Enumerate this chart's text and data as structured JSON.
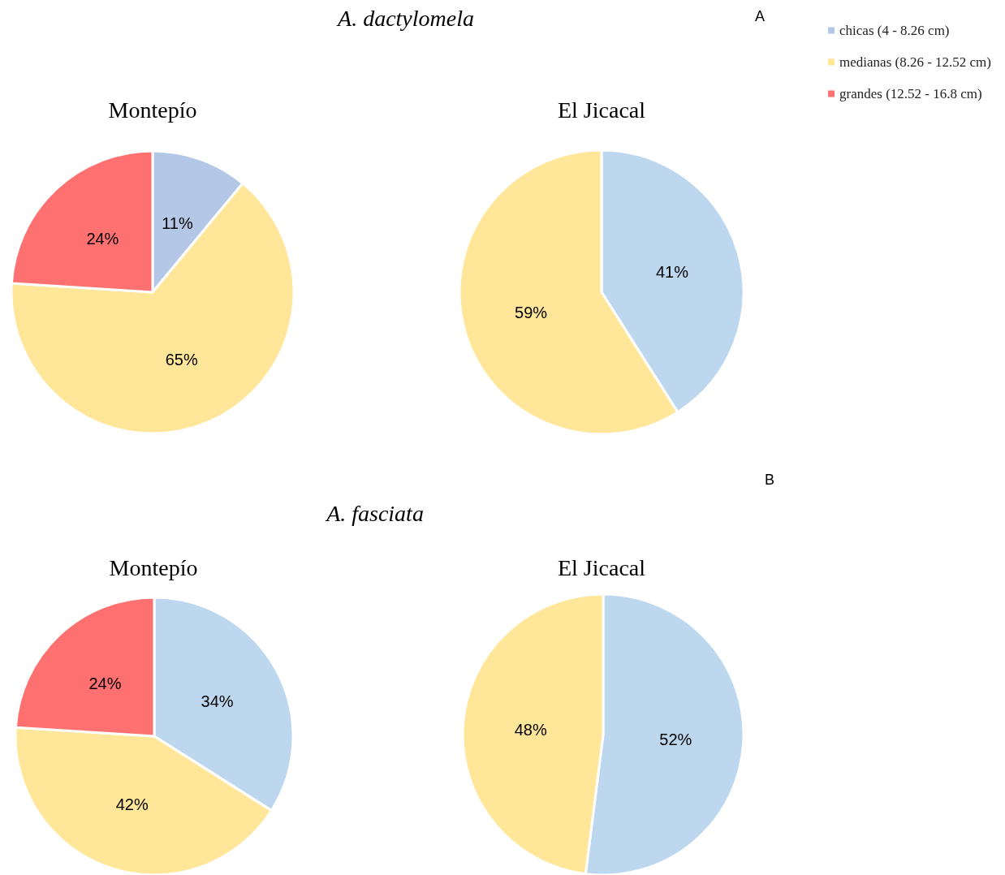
{
  "chart_data": [
    {
      "type": "pie",
      "title": "Montepío",
      "annotations": [
        "A. dactylomela",
        "A"
      ],
      "categories": [
        "chicas (4 - 8.26 cm)",
        "medianas (8.26 - 12.52 cm)",
        "grandes (12.52 - 16.8 cm)"
      ],
      "values": [
        11,
        65,
        24
      ],
      "value_labels": [
        "11%",
        "65%",
        "24%"
      ],
      "colors": [
        "#b4c7e7",
        "#ffe699",
        "#ff7171"
      ],
      "legend": "top right"
    },
    {
      "type": "pie",
      "title": "El Jicacal",
      "categories": [
        null,
        null
      ],
      "values": [
        41,
        59
      ],
      "value_labels": [
        "41%",
        "59%"
      ],
      "colors": [
        "#bdd7ee",
        "#ffe699"
      ]
    },
    {
      "type": "pie",
      "title": "Montepío",
      "annotations": [
        "A. fasciata",
        "B"
      ],
      "categories": [
        null,
        null,
        null
      ],
      "values": [
        34,
        42,
        24
      ],
      "value_labels": [
        "34%",
        "42%",
        "24%"
      ],
      "colors": [
        "#bdd7ee",
        "#ffe699",
        "#ff7171"
      ]
    },
    {
      "type": "pie",
      "title": "El Jicacal",
      "categories": [
        null,
        null
      ],
      "values": [
        52,
        48
      ],
      "value_labels": [
        "52%",
        "48%"
      ],
      "colors": [
        "#bdd7ee",
        "#ffe699"
      ]
    }
  ]
}
